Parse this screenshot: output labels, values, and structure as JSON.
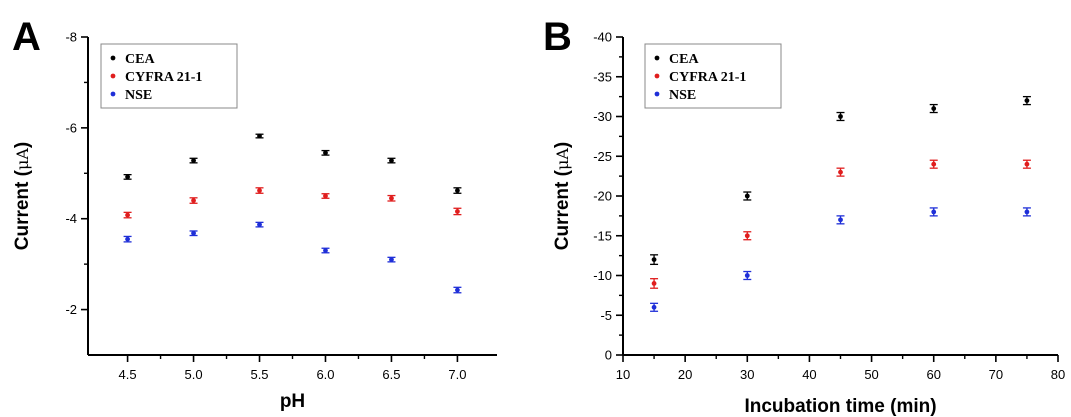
{
  "colors": {
    "CEA": "#000000",
    "CYFRA 21-1": "#e01e1e",
    "NSE": "#1f2fd8"
  },
  "chart_data": [
    {
      "panel": "A",
      "type": "scatter",
      "xlabel": "pH",
      "ylabel_prefix": "Current (",
      "ylabel_unit": "μA",
      "ylabel_suffix": ")",
      "xlim": [
        4.2,
        7.3
      ],
      "ylim": [
        -1,
        -8
      ],
      "xticks": [
        4.5,
        5.0,
        5.5,
        6.0,
        6.5,
        7.0
      ],
      "xtick_labels": [
        "4.5",
        "5.0",
        "5.5",
        "6.0",
        "6.5",
        "7.0"
      ],
      "yticks": [
        -2,
        -4,
        -6,
        -8
      ],
      "ytick_labels": [
        "-2",
        "-4",
        "-6",
        "-8"
      ],
      "legend": "top-left",
      "x": [
        4.5,
        5.0,
        5.5,
        6.0,
        6.5,
        7.0
      ],
      "series": [
        {
          "name": "CEA",
          "values": [
            -4.92,
            -5.28,
            -5.82,
            -5.45,
            -5.28,
            -4.62
          ],
          "err": [
            0.05,
            0.05,
            0.04,
            0.05,
            0.05,
            0.06
          ]
        },
        {
          "name": "CYFRA 21-1",
          "values": [
            -4.08,
            -4.4,
            -4.62,
            -4.5,
            -4.45,
            -4.16
          ],
          "err": [
            0.06,
            0.06,
            0.06,
            0.05,
            0.06,
            0.07
          ]
        },
        {
          "name": "NSE",
          "values": [
            -3.55,
            -3.68,
            -3.87,
            -3.3,
            -3.1,
            -2.43
          ],
          "err": [
            0.06,
            0.05,
            0.05,
            0.05,
            0.05,
            0.06
          ]
        }
      ]
    },
    {
      "panel": "B",
      "type": "scatter",
      "xlabel": "Incubation time (min)",
      "ylabel_prefix": "Current (",
      "ylabel_unit": "μA",
      "ylabel_suffix": ")",
      "xlim": [
        10,
        80
      ],
      "ylim": [
        0,
        -40
      ],
      "xticks": [
        10,
        20,
        30,
        40,
        50,
        60,
        70,
        80
      ],
      "xtick_labels": [
        "10",
        "20",
        "30",
        "40",
        "50",
        "60",
        "70",
        "80"
      ],
      "yticks": [
        0,
        -5,
        -10,
        -15,
        -20,
        -25,
        -30,
        -35,
        -40
      ],
      "ytick_labels": [
        "0",
        "-5",
        "-10",
        "-15",
        "-20",
        "-25",
        "-30",
        "-35",
        "-40"
      ],
      "legend": "top-left",
      "x": [
        15,
        30,
        45,
        60,
        75
      ],
      "series": [
        {
          "name": "CEA",
          "values": [
            -12,
            -20,
            -30,
            -31,
            -32
          ],
          "err": [
            0.6,
            0.5,
            0.5,
            0.5,
            0.5
          ]
        },
        {
          "name": "CYFRA 21-1",
          "values": [
            -9,
            -15,
            -23,
            -24,
            -24
          ],
          "err": [
            0.6,
            0.5,
            0.5,
            0.5,
            0.5
          ]
        },
        {
          "name": "NSE",
          "values": [
            -6,
            -10,
            -17,
            -18,
            -18
          ],
          "err": [
            0.5,
            0.5,
            0.5,
            0.5,
            0.5
          ]
        }
      ]
    }
  ]
}
